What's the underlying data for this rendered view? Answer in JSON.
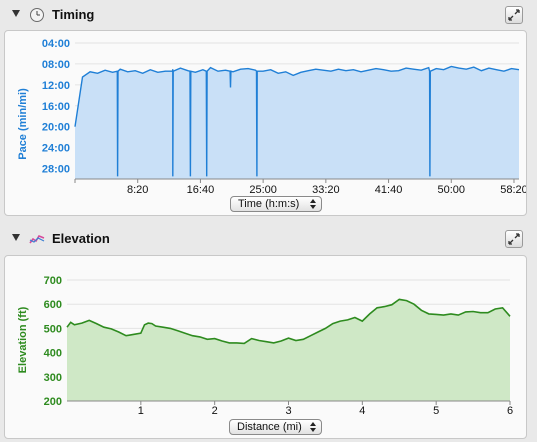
{
  "timing": {
    "title": "Timing",
    "icon": "clock-icon",
    "x_selector": "Time (h:m:s)",
    "chart_data": {
      "type": "area",
      "ylabel": "Pace (min/mi)",
      "xlabel": "Time (h:m:s)",
      "y_inverted": true,
      "y_ticks": [
        "04:00",
        "08:00",
        "12:00",
        "16:00",
        "20:00",
        "24:00",
        "28:00"
      ],
      "x_ticks": [
        "8:20",
        "16:40",
        "25:00",
        "33:20",
        "41:40",
        "50:00",
        "58:20"
      ],
      "color": "#1f7fd6",
      "fill": "#c9e0f7",
      "x_seconds": [
        0,
        60,
        120,
        180,
        240,
        300,
        360,
        420,
        480,
        540,
        600,
        660,
        720,
        780,
        840,
        900,
        960,
        1020,
        1080,
        1140,
        1200,
        1260,
        1320,
        1380,
        1440,
        1500,
        1560,
        1620,
        1680,
        1740,
        1800,
        1860,
        1920,
        1980,
        2040,
        2100,
        2160,
        2220,
        2280,
        2340,
        2400,
        2460,
        2520,
        2580,
        2640,
        2700,
        2760,
        2820,
        2880,
        2940,
        3000,
        3060,
        3120,
        3180,
        3240,
        3300,
        3360,
        3420,
        3480,
        3540
      ],
      "pace_minutes": [
        20.0,
        10.5,
        9.5,
        9.8,
        9.2,
        9.6,
        9.0,
        9.5,
        9.3,
        9.8,
        9.1,
        9.6,
        9.4,
        9.0,
        8.8,
        9.3,
        9.6,
        9.1,
        8.7,
        9.4,
        9.2,
        9.5,
        9.0,
        8.9,
        9.2,
        9.4,
        9.1,
        9.8,
        9.5,
        10.2,
        9.6,
        9.3,
        9.0,
        9.2,
        9.4,
        9.0,
        9.3,
        9.1,
        9.5,
        9.2,
        8.9,
        9.1,
        9.4,
        9.3,
        8.8,
        9.0,
        9.2,
        8.7,
        8.9,
        9.1,
        8.5,
        8.8,
        9.0,
        8.6,
        9.3,
        8.8,
        9.1,
        9.4,
        8.9,
        9.1
      ],
      "drops": [
        {
          "t": 340,
          "pace": 29.5
        },
        {
          "t": 780,
          "pace": 29.5
        },
        {
          "t": 920,
          "pace": 29.5
        },
        {
          "t": 1050,
          "pace": 29.5
        },
        {
          "t": 1240,
          "pace": 12.5
        },
        {
          "t": 1450,
          "pace": 29.5
        },
        {
          "t": 2830,
          "pace": 29.5
        }
      ]
    }
  },
  "elevation": {
    "title": "Elevation",
    "icon": "elevation-graph-icon",
    "x_selector": "Distance (mi)",
    "chart_data": {
      "type": "area",
      "ylabel": "Elevation (ft)",
      "xlabel": "Distance (mi)",
      "ylim": [
        200,
        700
      ],
      "y_ticks": [
        "700",
        "600",
        "500",
        "400",
        "300",
        "200"
      ],
      "x_ticks": [
        "1",
        "2",
        "3",
        "4",
        "5",
        "6"
      ],
      "color": "#2e8b1f",
      "fill": "#cfe8c6",
      "x": [
        0,
        0.05,
        0.1,
        0.2,
        0.3,
        0.4,
        0.5,
        0.6,
        0.7,
        0.8,
        0.9,
        1.0,
        1.05,
        1.1,
        1.15,
        1.2,
        1.3,
        1.4,
        1.5,
        1.6,
        1.7,
        1.8,
        1.9,
        2.0,
        2.1,
        2.2,
        2.3,
        2.4,
        2.5,
        2.6,
        2.7,
        2.8,
        2.9,
        3.0,
        3.1,
        3.2,
        3.3,
        3.4,
        3.5,
        3.6,
        3.7,
        3.8,
        3.9,
        4.0,
        4.1,
        4.2,
        4.3,
        4.4,
        4.5,
        4.6,
        4.7,
        4.8,
        4.9,
        5.0,
        5.1,
        5.2,
        5.3,
        5.4,
        5.5,
        5.6,
        5.7,
        5.8,
        5.9,
        6.0
      ],
      "values": [
        505,
        525,
        515,
        522,
        533,
        520,
        505,
        498,
        485,
        470,
        475,
        480,
        515,
        522,
        520,
        510,
        505,
        500,
        490,
        480,
        470,
        465,
        455,
        458,
        448,
        440,
        440,
        438,
        458,
        450,
        445,
        440,
        448,
        460,
        450,
        455,
        470,
        485,
        500,
        520,
        530,
        535,
        545,
        530,
        560,
        585,
        590,
        598,
        620,
        615,
        600,
        575,
        560,
        558,
        555,
        560,
        555,
        568,
        570,
        565,
        565,
        580,
        585,
        550
      ]
    }
  }
}
